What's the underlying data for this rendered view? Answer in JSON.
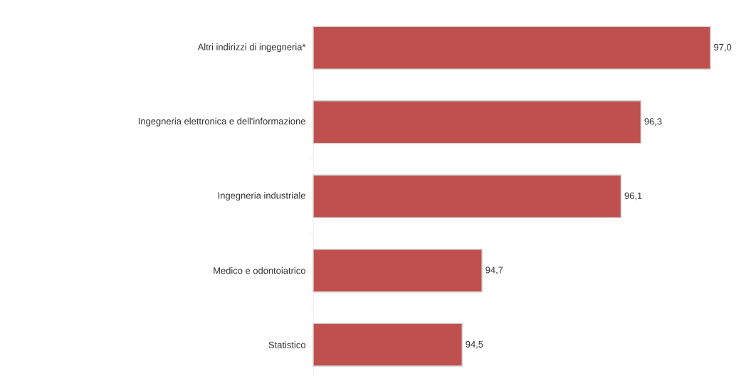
{
  "chart_data": {
    "type": "bar",
    "orientation": "horizontal",
    "categories": [
      "Altri indirizzi di ingegneria*",
      "Ingegneria elettronica e dell'informazione",
      "Ingegneria industriale",
      "Medico e odontoiatrico",
      "Statistico"
    ],
    "values": [
      97.0,
      96.3,
      96.1,
      94.7,
      94.5
    ],
    "value_labels": [
      "97,0",
      "96,3",
      "96,1",
      "94,7",
      "94,5"
    ],
    "color": "#c0504d",
    "xlim": [
      93,
      97.0
    ]
  }
}
